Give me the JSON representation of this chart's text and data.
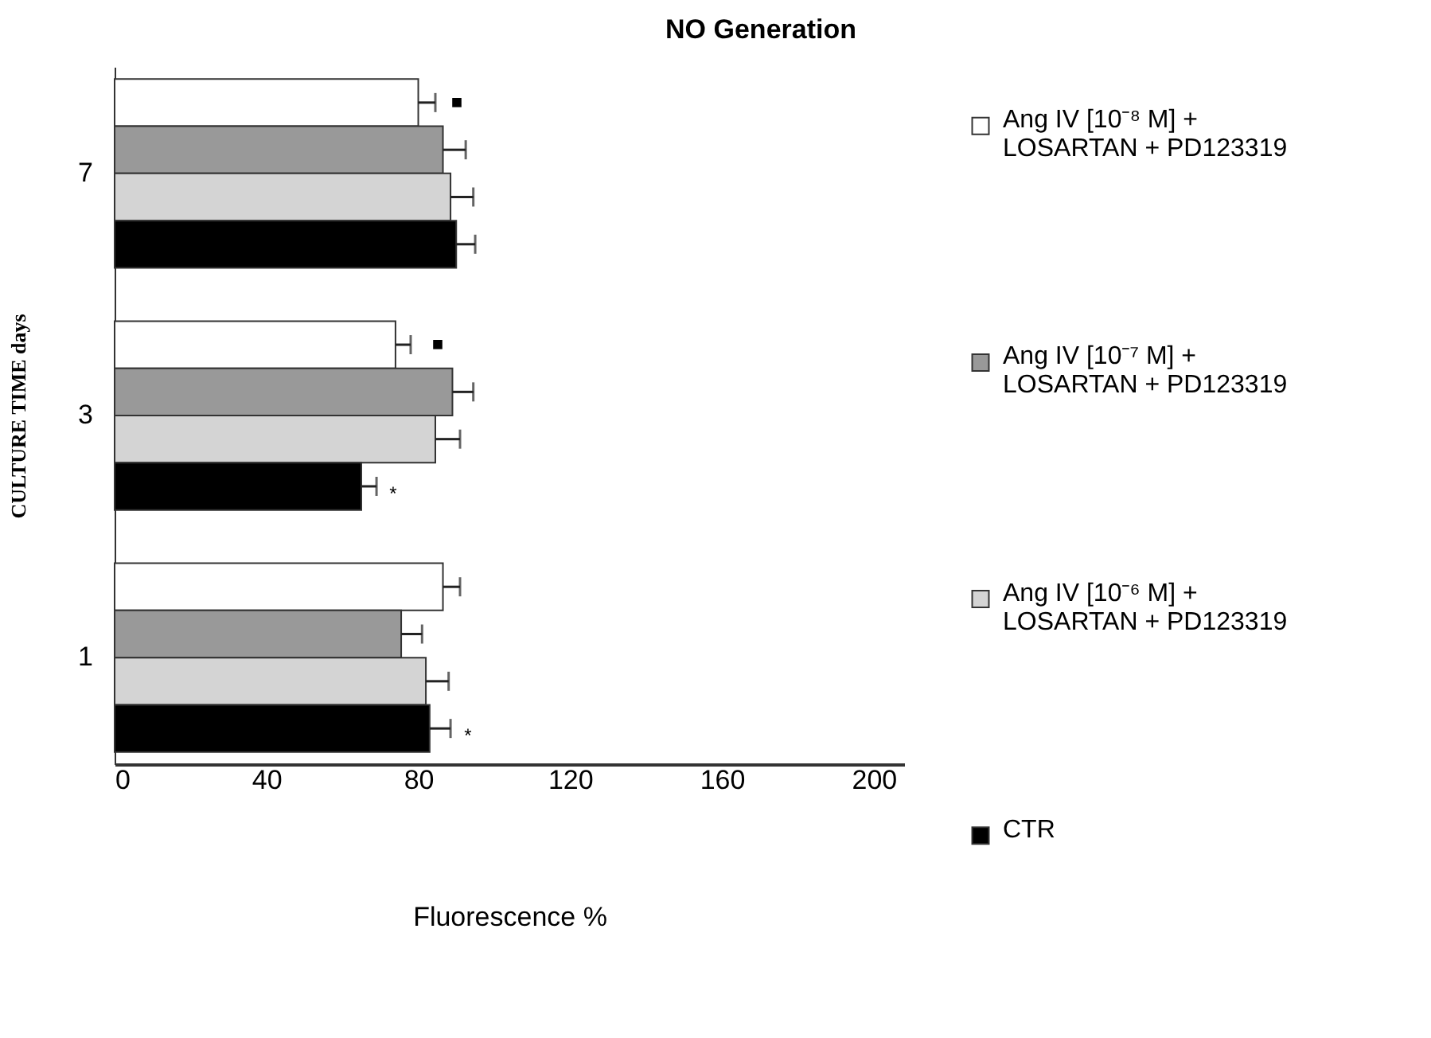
{
  "chart_data": {
    "type": "bar",
    "orientation": "horizontal",
    "title": "NO Generation",
    "xlabel": "Fluorescence %",
    "ylabel": "CULTURE TIME days",
    "categories": [
      "7",
      "3",
      "1"
    ],
    "series": [
      {
        "name": "Ang IV [10⁻⁸ M] + LOSARTAN + PD123319",
        "color": "#ffffff",
        "values": [
          80,
          74,
          86.5
        ],
        "errors": [
          4.5,
          4,
          4.5
        ]
      },
      {
        "name": "Ang IV [10⁻⁷ M] + LOSARTAN + PD123319",
        "color": "#999999",
        "values": [
          86.5,
          89,
          75.5
        ],
        "errors": [
          6,
          5.5,
          5.5
        ]
      },
      {
        "name": "Ang IV [10⁻⁶ M] + LOSARTAN + PD123319",
        "color": "#d4d4d4",
        "values": [
          88.5,
          84.5,
          82
        ],
        "errors": [
          6,
          6.5,
          6
        ]
      },
      {
        "name": "CTR",
        "color": "#000000",
        "values": [
          90,
          65,
          83
        ],
        "errors": [
          5,
          4,
          5.5
        ]
      }
    ],
    "annotations": [
      "■",
      "■",
      "*",
      "*"
    ],
    "xlim": [
      0,
      208
    ],
    "xticks": [
      0,
      40,
      80,
      120,
      160,
      200
    ],
    "grid": false,
    "legend": "right"
  }
}
